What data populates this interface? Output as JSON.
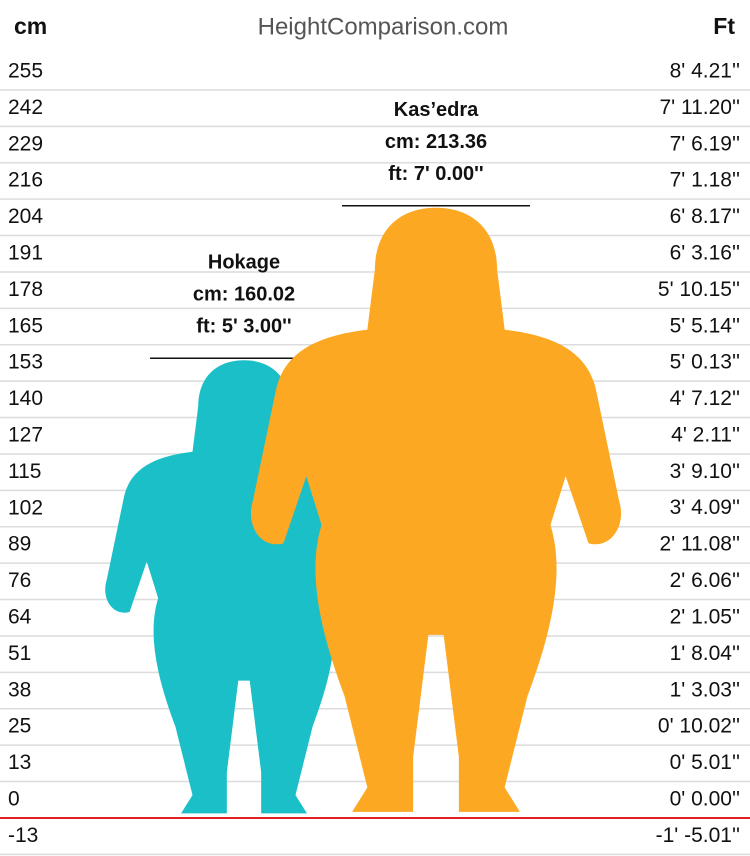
{
  "chart_data": {
    "type": "height-comparison",
    "title": "HeightComparison.com",
    "ylabel": "cm",
    "y2label": "Ft",
    "ylim": [
      -13.3,
      267.1
    ],
    "yticks": [
      {
        "value": -12.73,
        "label": "-13"
      },
      0,
      {
        "value": 12.73,
        "label": "13"
      },
      {
        "value": 25.45,
        "label": "25"
      },
      {
        "value": 38.18,
        "label": "38"
      },
      {
        "value": 50.91,
        "label": "51"
      },
      {
        "value": 63.63,
        "label": "64"
      },
      {
        "value": 76.36,
        "label": "76"
      },
      {
        "value": 89.09,
        "label": "89"
      },
      {
        "value": 101.81,
        "label": "102"
      },
      {
        "value": 114.54,
        "label": "115"
      },
      {
        "value": 127.27,
        "label": "127"
      },
      140,
      {
        "value": 152.72,
        "label": "153"
      },
      {
        "value": 165.45,
        "label": "165"
      },
      {
        "value": 178.17,
        "label": "178"
      },
      {
        "value": 190.9,
        "label": "191"
      },
      {
        "value": 203.63,
        "label": "204"
      },
      {
        "value": 216.35,
        "label": "216"
      },
      {
        "value": 229.08,
        "label": "229"
      },
      {
        "value": 241.81,
        "label": "242"
      },
      {
        "value": 254.53,
        "label": "255"
      }
    ],
    "y2lim": [
      -5.24,
      105.16
    ],
    "y2ticks": [
      {
        "value": -5.01,
        "label": "-1' -5.01''"
      },
      {
        "value": 0,
        "label": "0' 0.00''"
      },
      {
        "value": 5.01,
        "label": "0' 5.01''"
      },
      {
        "value": 10.02,
        "label": "0' 10.02''"
      },
      {
        "value": 15.03,
        "label": "1' 3.03''"
      },
      {
        "value": 20.04,
        "label": "1' 8.04''"
      },
      {
        "value": 25.05,
        "label": "2' 1.05''"
      },
      {
        "value": 30.06,
        "label": "2' 6.06''"
      },
      {
        "value": 35.08,
        "label": "2' 11.08''"
      },
      {
        "value": 40.09,
        "label": "3' 4.09''"
      },
      {
        "value": 45.1,
        "label": "3' 9.10''"
      },
      {
        "value": 50.11,
        "label": "4' 2.11''"
      },
      {
        "value": 55.12,
        "label": "4' 7.12''"
      },
      {
        "value": 60.13,
        "label": "5' 0.13''"
      },
      {
        "value": 65.14,
        "label": "5' 5.14''"
      },
      {
        "value": 70.15,
        "label": "5' 10.15''"
      },
      {
        "value": 75.16,
        "label": "6' 3.16''"
      },
      {
        "value": 80.17,
        "label": "6' 8.17''"
      },
      {
        "value": 85.18,
        "label": "7' 1.18''"
      },
      {
        "value": 90.19,
        "label": "7' 6.19''"
      },
      {
        "value": 95.2,
        "label": "7' 11.20''"
      },
      {
        "value": 100.21,
        "label": "8' 4.21''"
      }
    ],
    "grid": true,
    "series": [
      {
        "name": "Hokage",
        "color": "#1bbfc8",
        "values": [
          160.02
        ],
        "value_labels": [
          "cm: 160.02"
        ],
        "y2_values": [
          63.0
        ],
        "y2_value_labels": [
          "ft: 5' 3.00''"
        ]
      },
      {
        "name": "Kas’edra",
        "color": "#fca823",
        "values": [
          213.36
        ],
        "value_labels": [
          "cm: 213.36"
        ],
        "y2_values": [
          84.0
        ],
        "y2_value_labels": [
          "ft: 7' 0.00''"
        ]
      }
    ]
  }
}
